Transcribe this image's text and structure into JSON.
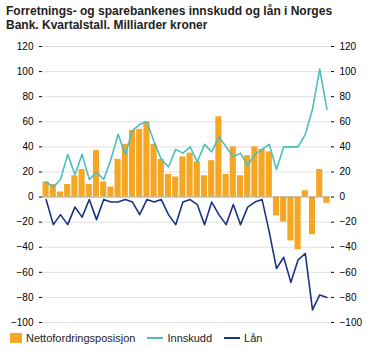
{
  "chart_data": {
    "type": "bar",
    "title": "Forretnings- og sparebankenes innskudd og lån i Norges Bank. Kvartalstall. Milliarder kroner",
    "categories": [
      null,
      null,
      null,
      null,
      null,
      null,
      null,
      null,
      null,
      null,
      null,
      null,
      null,
      null,
      null,
      null,
      null,
      null,
      null,
      null,
      null,
      null,
      null,
      null,
      null,
      null,
      null,
      null,
      null,
      null,
      null,
      null,
      null,
      null,
      null,
      null,
      null,
      null,
      null,
      null
    ],
    "series": [
      {
        "name": "Nettofordringsposisjon",
        "type": "bar",
        "color": "#f5a623",
        "values": [
          12,
          10,
          4,
          10,
          17,
          22,
          10,
          37,
          12,
          8,
          30,
          42,
          53,
          54,
          60,
          42,
          30,
          18,
          16,
          32,
          35,
          28,
          17,
          29,
          64,
          18,
          40,
          17,
          33,
          40,
          38,
          36,
          -15,
          -20,
          -35,
          -42,
          5,
          -30,
          22,
          -5
        ]
      },
      {
        "name": "Innskudd",
        "type": "line",
        "color": "#4bbfbf",
        "values": [
          12,
          8,
          14,
          34,
          18,
          34,
          14,
          20,
          14,
          30,
          50,
          34,
          53,
          58,
          60,
          44,
          30,
          24,
          38,
          35,
          40,
          28,
          42,
          36,
          48,
          40,
          32,
          35,
          25,
          34,
          38,
          42,
          22,
          40,
          40,
          40,
          50,
          70,
          102,
          70
        ]
      },
      {
        "name": "Lån",
        "type": "line",
        "color": "#1a3480",
        "values": [
          -2,
          -22,
          -14,
          -22,
          -8,
          -16,
          -2,
          -18,
          -2,
          -4,
          -4,
          -2,
          -4,
          -14,
          -2,
          -4,
          -2,
          -14,
          -22,
          -4,
          -2,
          -6,
          -22,
          -4,
          -14,
          -22,
          -6,
          -22,
          -8,
          -4,
          -2,
          -28,
          -57,
          -48,
          -68,
          -50,
          -45,
          -90,
          -78,
          -80
        ]
      }
    ],
    "ylim": [
      -100,
      120
    ],
    "yticks": [
      -100,
      -80,
      -60,
      -40,
      -20,
      0,
      20,
      40,
      60,
      80,
      100,
      120
    ],
    "grid": true,
    "legend": "bottom",
    "tick_labels": "y"
  }
}
